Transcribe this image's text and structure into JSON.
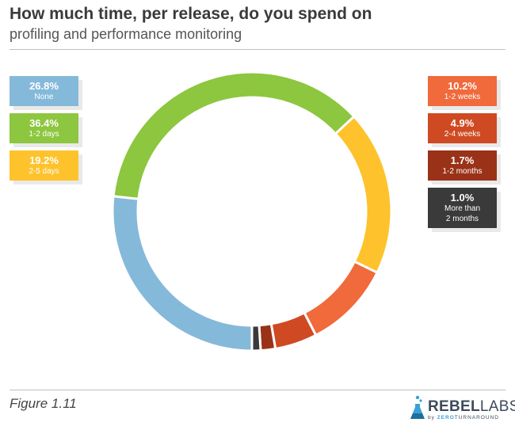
{
  "title": "How much time, per release, do you spend on",
  "subtitle": "profiling and performance monitoring",
  "figure_label": "Figure 1.11",
  "logo": {
    "brand": "REBEL",
    "brand_suffix": "LABS",
    "by": "by",
    "zero": "ZERO",
    "turnaround": "TURNAROUND"
  },
  "colors": {
    "none": "#85b9da",
    "days_1_2": "#8dc63f",
    "days_2_5": "#fec22c",
    "weeks_1_2": "#f06a3c",
    "weeks_2_4": "#cf4a22",
    "months_1_2": "#9a3218",
    "more": "#3a3a3a"
  },
  "legend_left": [
    {
      "pct": "26.8%",
      "label": "None",
      "color": "#85b9da"
    },
    {
      "pct": "36.4%",
      "label": "1-2 days",
      "color": "#8dc63f"
    },
    {
      "pct": "19.2%",
      "label": "2-5 days",
      "color": "#fec22c"
    }
  ],
  "legend_right": [
    {
      "pct": "10.2%",
      "label": "1-2 weeks",
      "color": "#f06a3c"
    },
    {
      "pct": "4.9%",
      "label": "2-4 weeks",
      "color": "#cf4a22"
    },
    {
      "pct": "1.7%",
      "label": "1-2 months",
      "color": "#9a3218"
    },
    {
      "pct": "1.0%",
      "label": "More than 2 months",
      "color": "#3a3a3a"
    }
  ],
  "chart_data": {
    "type": "pie",
    "title": "How much time, per release, do you spend on profiling and performance monitoring",
    "categories": [
      "None",
      "1-2 days",
      "2-5 days",
      "1-2 weeks",
      "2-4 weeks",
      "1-2 months",
      "More than 2 months"
    ],
    "values": [
      26.8,
      36.4,
      19.2,
      10.2,
      4.9,
      1.7,
      1.0
    ],
    "colors": [
      "#85b9da",
      "#8dc63f",
      "#fec22c",
      "#f06a3c",
      "#cf4a22",
      "#9a3218",
      "#3a3a3a"
    ],
    "donut": true,
    "legend": "split left and right"
  }
}
